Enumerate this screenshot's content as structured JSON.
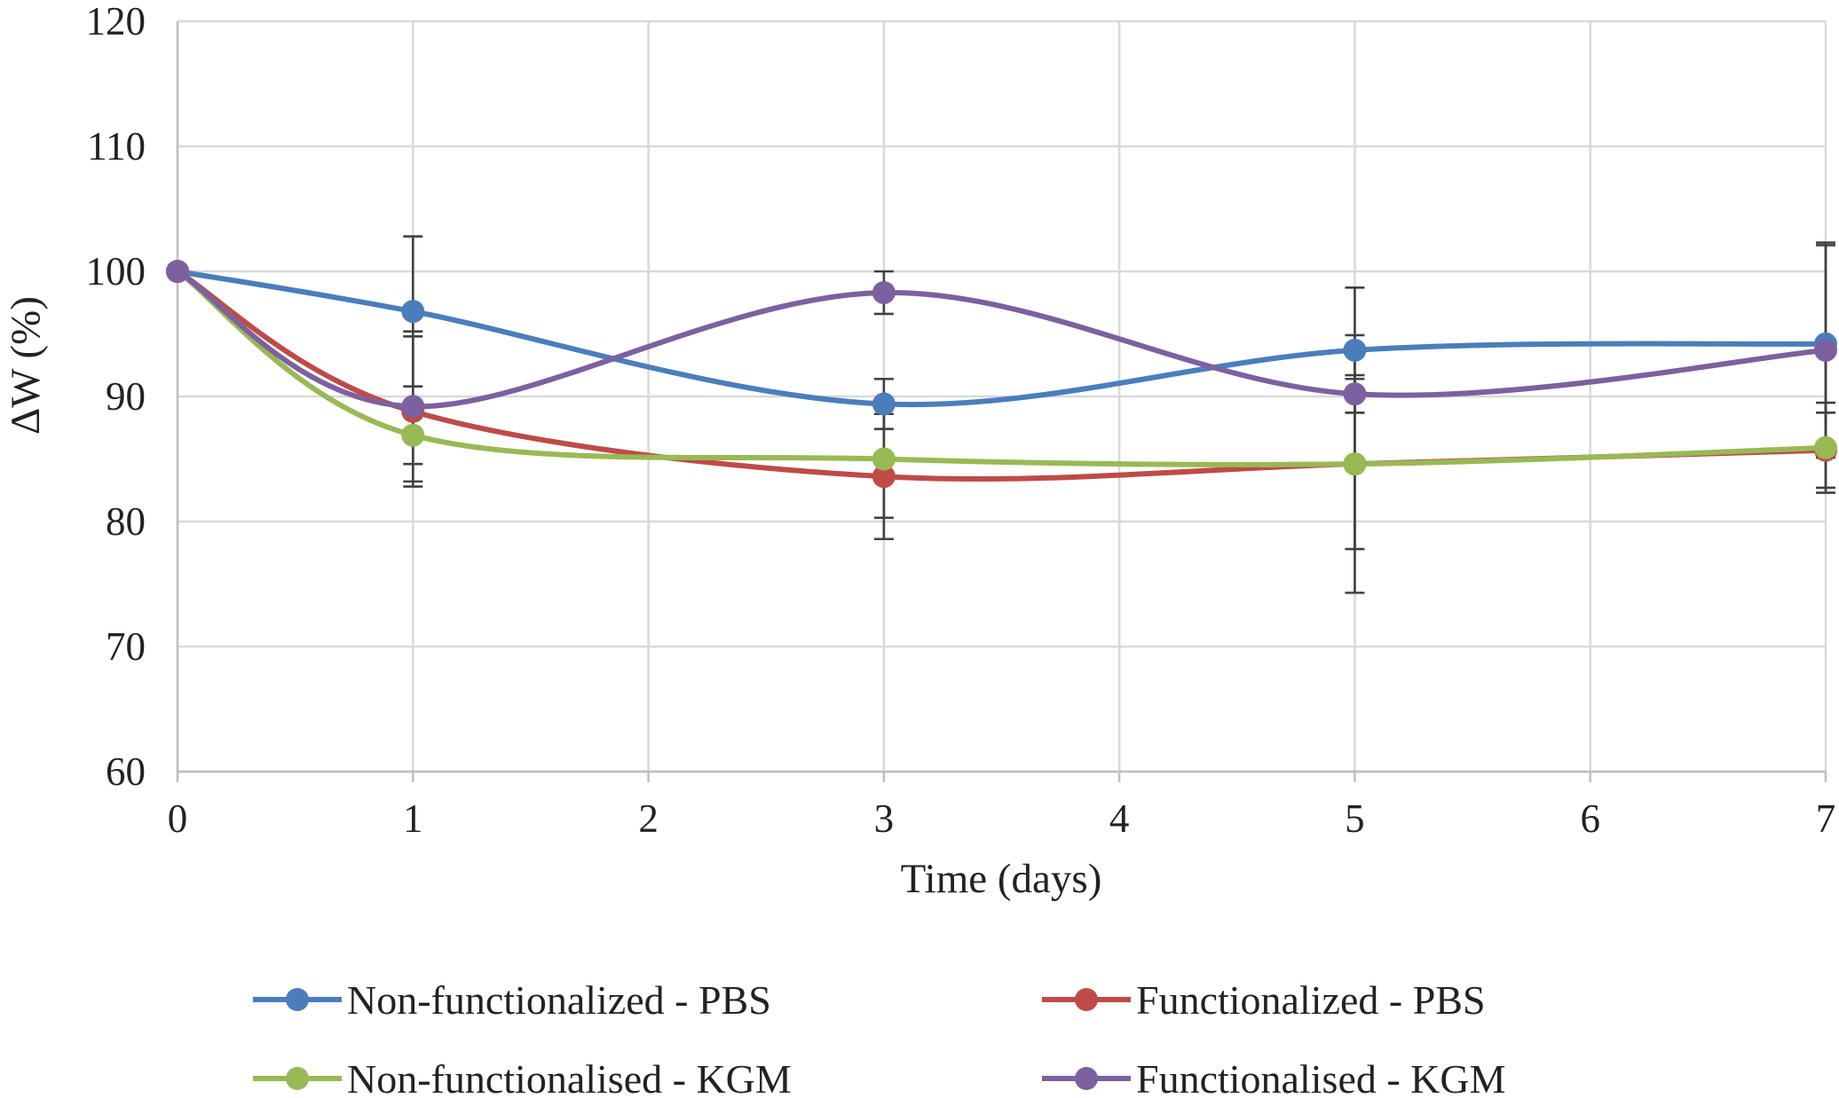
{
  "chart_data": {
    "type": "line",
    "title": "",
    "xlabel": "Time (days)",
    "ylabel": "ΔW (%)",
    "xlim": [
      0,
      7
    ],
    "ylim": [
      60,
      120
    ],
    "xticks": [
      0,
      1,
      2,
      3,
      4,
      5,
      6,
      7
    ],
    "yticks": [
      60,
      70,
      80,
      90,
      100,
      110,
      120
    ],
    "grid": true,
    "legend_position": "bottom",
    "series": [
      {
        "name": "Non-functionalized - PBS",
        "color": "#4a7ebb",
        "x": [
          0,
          1,
          3,
          5,
          7
        ],
        "y": [
          100,
          96.8,
          89.4,
          93.7,
          94.2
        ],
        "error": [
          0,
          6.0,
          2.0,
          5.0,
          7.9
        ]
      },
      {
        "name": "Functionalized - PBS",
        "color": "#be4b48",
        "x": [
          0,
          1,
          3,
          5,
          7
        ],
        "y": [
          100,
          88.8,
          83.6,
          84.6,
          85.7
        ],
        "error": [
          0,
          6.0,
          5.0,
          6.8,
          3.0
        ]
      },
      {
        "name": "Non-functionalised - KGM",
        "color": "#98b954",
        "x": [
          0,
          1,
          3,
          5,
          7
        ],
        "y": [
          100,
          86.9,
          85.0,
          84.6,
          85.9
        ],
        "error": [
          0,
          2.3,
          4.7,
          10.3,
          3.6
        ]
      },
      {
        "name": "Functionalised - KGM",
        "color": "#7d60a0",
        "x": [
          0,
          1,
          3,
          5,
          7
        ],
        "y": [
          100,
          89.2,
          98.3,
          90.2,
          93.7
        ],
        "error": [
          0,
          6.0,
          1.7,
          1.5,
          8.6
        ]
      }
    ]
  }
}
